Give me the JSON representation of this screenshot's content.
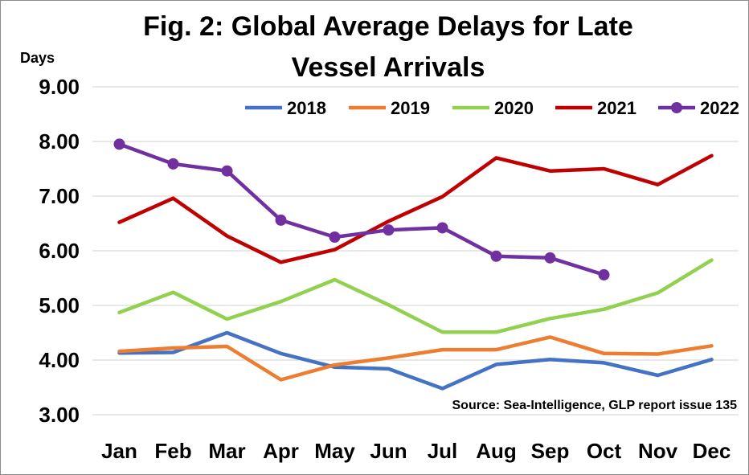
{
  "chart_data": {
    "type": "line",
    "title_line1": "Fig. 2: Global Average Delays for Late",
    "title_line2": "Vessel Arrivals",
    "title": "Fig. 2: Global Average Delays for Late Vessel Arrivals",
    "ylabel": "Days",
    "xlabel": "",
    "ylim": [
      3.0,
      9.0
    ],
    "yticks": [
      "3.00",
      "4.00",
      "5.00",
      "6.00",
      "7.00",
      "8.00",
      "9.00"
    ],
    "ytick_values": [
      3,
      4,
      5,
      6,
      7,
      8,
      9
    ],
    "categories": [
      "Jan",
      "Feb",
      "Mar",
      "Apr",
      "May",
      "Jun",
      "Jul",
      "Aug",
      "Sep",
      "Oct",
      "Nov",
      "Dec"
    ],
    "grid": "horizontal",
    "legend_position": "top-right",
    "series": [
      {
        "name": "2018",
        "color": "#4472C4",
        "markers": false,
        "values": [
          4.13,
          4.14,
          4.5,
          4.12,
          3.87,
          3.84,
          3.48,
          3.92,
          4.01,
          3.95,
          3.72,
          4.01
        ]
      },
      {
        "name": "2019",
        "color": "#ED7D31",
        "markers": false,
        "values": [
          4.16,
          4.22,
          4.25,
          3.64,
          3.91,
          4.04,
          4.19,
          4.19,
          4.42,
          4.12,
          4.11,
          4.26
        ]
      },
      {
        "name": "2020",
        "color": "#92D050",
        "markers": false,
        "values": [
          4.87,
          5.24,
          4.75,
          5.07,
          5.47,
          5.01,
          4.51,
          4.51,
          4.76,
          4.93,
          5.23,
          5.83
        ]
      },
      {
        "name": "2021",
        "color": "#C00000",
        "markers": false,
        "values": [
          6.52,
          6.96,
          6.27,
          5.79,
          6.02,
          6.54,
          6.99,
          7.7,
          7.46,
          7.5,
          7.21,
          7.74
        ]
      },
      {
        "name": "2022",
        "color": "#7030A0",
        "markers": true,
        "values": [
          7.95,
          7.59,
          7.46,
          6.56,
          6.25,
          6.38,
          6.42,
          5.9,
          5.87,
          5.56,
          null,
          null
        ]
      }
    ],
    "annotation": "Source: Sea-Intelligence, GLP report issue 135"
  }
}
